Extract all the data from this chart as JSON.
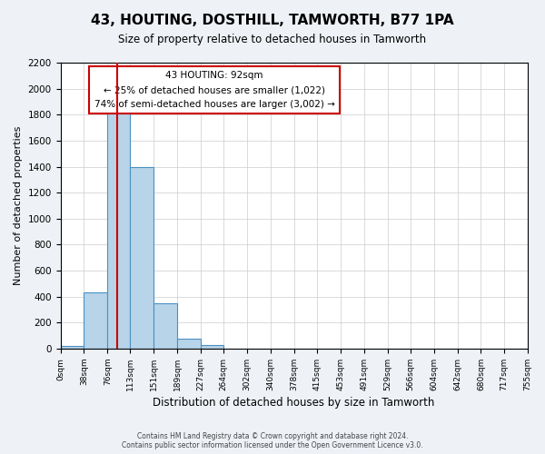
{
  "title": "43, HOUTING, DOSTHILL, TAMWORTH, B77 1PA",
  "subtitle": "Size of property relative to detached houses in Tamworth",
  "xlabel": "Distribution of detached houses by size in Tamworth",
  "ylabel": "Number of detached properties",
  "bar_color": "#b8d4e8",
  "bar_edge_color": "#4a90c4",
  "bin_edges": [
    0,
    38,
    76,
    113,
    151,
    189,
    227,
    264,
    302,
    340,
    378,
    415,
    453,
    491,
    529,
    566,
    604,
    642,
    680,
    717,
    755
  ],
  "bar_heights": [
    20,
    430,
    1810,
    1400,
    350,
    75,
    25,
    0,
    0,
    0,
    0,
    0,
    0,
    0,
    0,
    0,
    0,
    0,
    0,
    0
  ],
  "tick_labels": [
    "0sqm",
    "38sqm",
    "76sqm",
    "113sqm",
    "151sqm",
    "189sqm",
    "227sqm",
    "264sqm",
    "302sqm",
    "340sqm",
    "378sqm",
    "415sqm",
    "453sqm",
    "491sqm",
    "529sqm",
    "566sqm",
    "604sqm",
    "642sqm",
    "680sqm",
    "717sqm",
    "755sqm"
  ],
  "ylim": [
    0,
    2200
  ],
  "yticks": [
    0,
    200,
    400,
    600,
    800,
    1000,
    1200,
    1400,
    1600,
    1800,
    2000,
    2200
  ],
  "property_line_x": 92,
  "property_line_color": "#cc0000",
  "annotation_title": "43 HOUTING: 92sqm",
  "annotation_line1": "← 25% of detached houses are smaller (1,022)",
  "annotation_line2": "74% of semi-detached houses are larger (3,002) →",
  "annotation_box_color": "#ffffff",
  "annotation_box_edge_color": "#cc0000",
  "footer_line1": "Contains HM Land Registry data © Crown copyright and database right 2024.",
  "footer_line2": "Contains public sector information licensed under the Open Government Licence v3.0.",
  "background_color": "#eef2f7",
  "plot_bg_color": "#ffffff",
  "grid_color": "#cccccc"
}
